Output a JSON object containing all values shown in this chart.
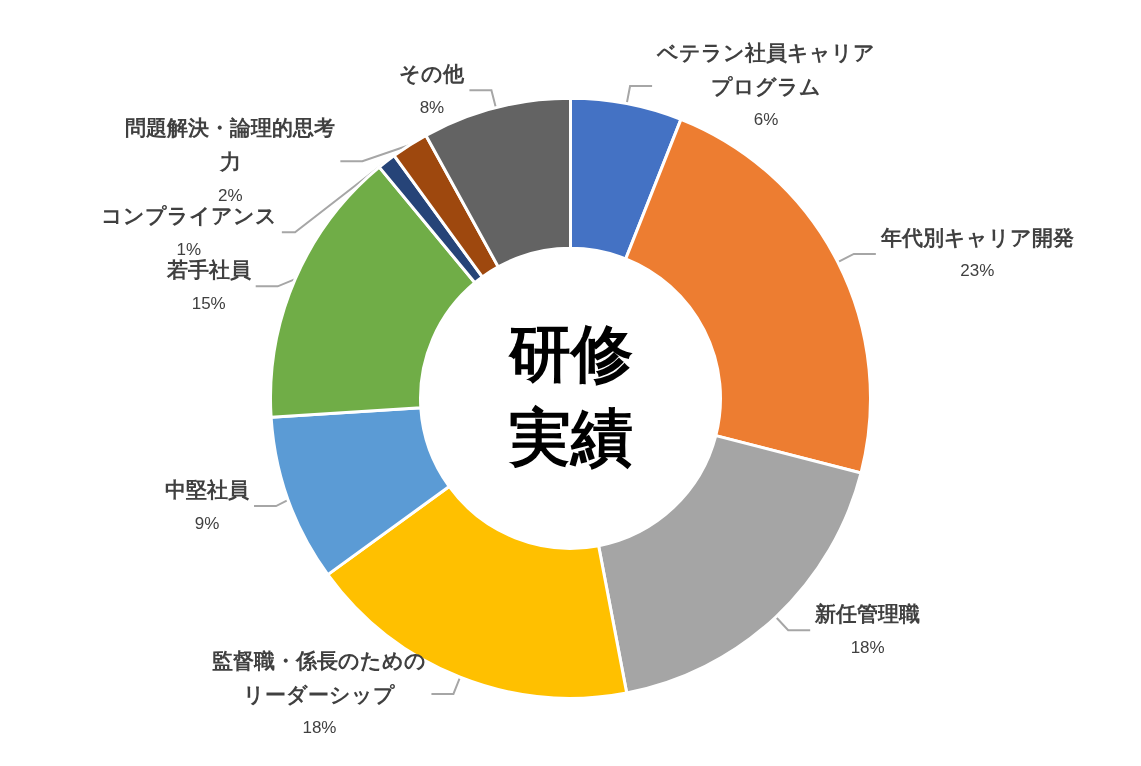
{
  "chart_data": {
    "type": "donut",
    "title": "研修実績",
    "categories": [
      "ベテラン社員キャリアプログラム",
      "年代別キャリア開発",
      "新任管理職",
      "監督職・係長のためのリーダーシップ",
      "中堅社員",
      "若手社員",
      "コンプライアンス",
      "問題解決・論理的思考力",
      "その他"
    ],
    "values": [
      6,
      23,
      18,
      18,
      9,
      15,
      1,
      2,
      8
    ],
    "value_labels": [
      "6%",
      "23%",
      "18%",
      "18%",
      "9%",
      "15%",
      "1%",
      "2%",
      "8%"
    ],
    "colors": [
      "#4472c4",
      "#ed7d31",
      "#a5a5a5",
      "#ffc000",
      "#5b9bd5",
      "#70ad47",
      "#264478",
      "#9e480e",
      "#636363"
    ],
    "legend": false
  }
}
